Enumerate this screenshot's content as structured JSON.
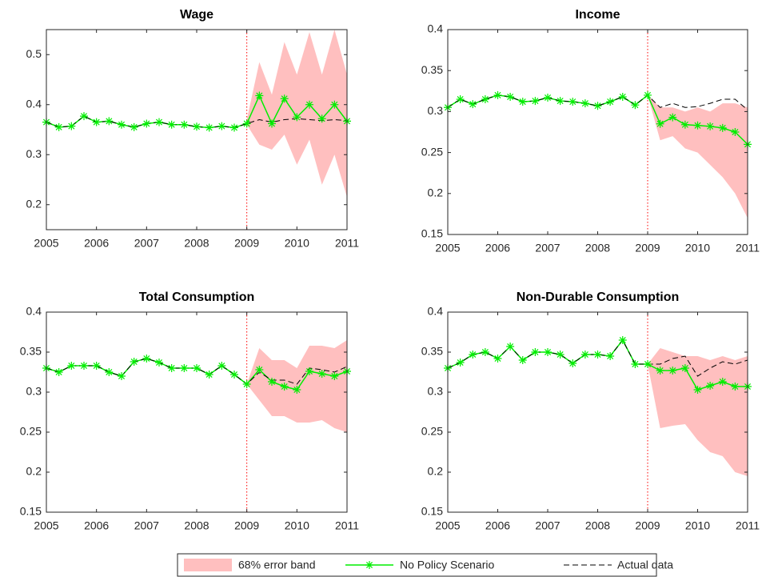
{
  "chart_data": [
    {
      "type": "line",
      "title": "Wage",
      "x": [
        2005,
        2005.25,
        2005.5,
        2005.75,
        2006,
        2006.25,
        2006.5,
        2006.75,
        2007,
        2007.25,
        2007.5,
        2007.75,
        2008,
        2008.25,
        2008.5,
        2008.75,
        2009,
        2009.25,
        2009.5,
        2009.75,
        2010,
        2010.25,
        2010.5,
        2010.75,
        2011
      ],
      "xlim": [
        2005,
        2011
      ],
      "xticks": [
        2005,
        2006,
        2007,
        2008,
        2009,
        2010,
        2011
      ],
      "ylim": [
        0.15,
        0.55
      ],
      "yticks": [
        0.2,
        0.3,
        0.4,
        0.5
      ],
      "vline": 2009,
      "vline_color": "#ff0000",
      "series": [
        {
          "name": "68% error band",
          "color": "#ffbfbf",
          "x": [
            2009,
            2009.25,
            2009.5,
            2009.75,
            2010,
            2010.25,
            2010.5,
            2010.75,
            2011
          ],
          "lower": [
            0.36,
            0.32,
            0.31,
            0.34,
            0.28,
            0.33,
            0.24,
            0.3,
            0.215
          ],
          "upper": [
            0.37,
            0.485,
            0.42,
            0.525,
            0.46,
            0.545,
            0.46,
            0.55,
            0.46
          ]
        },
        {
          "name": "No Policy Scenario",
          "color": "#00ee00",
          "values": [
            0.365,
            0.355,
            0.357,
            0.377,
            0.365,
            0.367,
            0.36,
            0.355,
            0.362,
            0.365,
            0.36,
            0.36,
            0.356,
            0.354,
            0.357,
            0.354,
            0.362,
            0.418,
            0.362,
            0.412,
            0.375,
            0.4,
            0.372,
            0.4,
            0.367
          ]
        },
        {
          "name": "Actual data",
          "color": "#000000",
          "values": [
            0.365,
            0.355,
            0.357,
            0.377,
            0.365,
            0.367,
            0.36,
            0.355,
            0.362,
            0.365,
            0.36,
            0.36,
            0.356,
            0.354,
            0.357,
            0.354,
            0.362,
            0.37,
            0.365,
            0.37,
            0.372,
            0.37,
            0.368,
            0.37,
            0.368
          ]
        }
      ]
    },
    {
      "type": "line",
      "title": "Income",
      "x": [
        2005,
        2005.25,
        2005.5,
        2005.75,
        2006,
        2006.25,
        2006.5,
        2006.75,
        2007,
        2007.25,
        2007.5,
        2007.75,
        2008,
        2008.25,
        2008.5,
        2008.75,
        2009,
        2009.25,
        2009.5,
        2009.75,
        2010,
        2010.25,
        2010.5,
        2010.75,
        2011
      ],
      "xlim": [
        2005,
        2011
      ],
      "xticks": [
        2005,
        2006,
        2007,
        2008,
        2009,
        2010,
        2011
      ],
      "ylim": [
        0.15,
        0.4
      ],
      "yticks": [
        0.15,
        0.2,
        0.25,
        0.3,
        0.35,
        0.4
      ],
      "vline": 2009,
      "vline_color": "#ff0000",
      "series": [
        {
          "color": "#ffbfbf",
          "x": [
            2009,
            2009.25,
            2009.5,
            2009.75,
            2010,
            2010.25,
            2010.5,
            2010.75,
            2011
          ],
          "lower": [
            0.32,
            0.265,
            0.27,
            0.255,
            0.25,
            0.235,
            0.22,
            0.2,
            0.17
          ],
          "upper": [
            0.32,
            0.305,
            0.305,
            0.3,
            0.305,
            0.3,
            0.31,
            0.31,
            0.305
          ]
        },
        {
          "color": "#00ee00",
          "values": [
            0.305,
            0.315,
            0.309,
            0.315,
            0.32,
            0.318,
            0.312,
            0.313,
            0.317,
            0.313,
            0.312,
            0.31,
            0.307,
            0.312,
            0.318,
            0.308,
            0.32,
            0.285,
            0.293,
            0.284,
            0.283,
            0.282,
            0.28,
            0.275,
            0.26
          ]
        },
        {
          "color": "#000000",
          "values": [
            0.305,
            0.315,
            0.309,
            0.315,
            0.32,
            0.318,
            0.312,
            0.313,
            0.317,
            0.313,
            0.312,
            0.31,
            0.307,
            0.312,
            0.318,
            0.308,
            0.32,
            0.305,
            0.31,
            0.305,
            0.306,
            0.31,
            0.315,
            0.315,
            0.302
          ]
        }
      ]
    },
    {
      "type": "line",
      "title": "Total Consumption",
      "x": [
        2005,
        2005.25,
        2005.5,
        2005.75,
        2006,
        2006.25,
        2006.5,
        2006.75,
        2007,
        2007.25,
        2007.5,
        2007.75,
        2008,
        2008.25,
        2008.5,
        2008.75,
        2009,
        2009.25,
        2009.5,
        2009.75,
        2010,
        2010.25,
        2010.5,
        2010.75,
        2011
      ],
      "xlim": [
        2005,
        2011
      ],
      "xticks": [
        2005,
        2006,
        2007,
        2008,
        2009,
        2010,
        2011
      ],
      "ylim": [
        0.15,
        0.4
      ],
      "yticks": [
        0.15,
        0.2,
        0.25,
        0.3,
        0.35,
        0.4
      ],
      "vline": 2009,
      "vline_color": "#ff0000",
      "series": [
        {
          "color": "#ffbfbf",
          "x": [
            2009,
            2009.25,
            2009.5,
            2009.75,
            2010,
            2010.25,
            2010.5,
            2010.75,
            2011
          ],
          "lower": [
            0.31,
            0.29,
            0.27,
            0.27,
            0.262,
            0.262,
            0.265,
            0.255,
            0.25
          ],
          "upper": [
            0.31,
            0.355,
            0.34,
            0.34,
            0.33,
            0.358,
            0.358,
            0.355,
            0.365
          ]
        },
        {
          "color": "#00ee00",
          "values": [
            0.33,
            0.325,
            0.333,
            0.333,
            0.333,
            0.325,
            0.32,
            0.338,
            0.342,
            0.337,
            0.33,
            0.33,
            0.33,
            0.322,
            0.333,
            0.322,
            0.31,
            0.328,
            0.313,
            0.307,
            0.303,
            0.326,
            0.323,
            0.32,
            0.326
          ]
        },
        {
          "color": "#000000",
          "values": [
            0.33,
            0.325,
            0.333,
            0.333,
            0.333,
            0.325,
            0.32,
            0.338,
            0.342,
            0.337,
            0.33,
            0.33,
            0.33,
            0.322,
            0.333,
            0.322,
            0.31,
            0.325,
            0.315,
            0.315,
            0.31,
            0.33,
            0.328,
            0.325,
            0.332
          ]
        }
      ]
    },
    {
      "type": "line",
      "title": "Non-Durable Consumption",
      "x": [
        2005,
        2005.25,
        2005.5,
        2005.75,
        2006,
        2006.25,
        2006.5,
        2006.75,
        2007,
        2007.25,
        2007.5,
        2007.75,
        2008,
        2008.25,
        2008.5,
        2008.75,
        2009,
        2009.25,
        2009.5,
        2009.75,
        2010,
        2010.25,
        2010.5,
        2010.75,
        2011
      ],
      "xlim": [
        2005,
        2011
      ],
      "xticks": [
        2005,
        2006,
        2007,
        2008,
        2009,
        2010,
        2011
      ],
      "ylim": [
        0.15,
        0.4
      ],
      "yticks": [
        0.15,
        0.2,
        0.25,
        0.3,
        0.35,
        0.4
      ],
      "vline": 2009,
      "vline_color": "#ff0000",
      "series": [
        {
          "color": "#ffbfbf",
          "x": [
            2009,
            2009.25,
            2009.5,
            2009.75,
            2010,
            2010.25,
            2010.5,
            2010.75,
            2011
          ],
          "lower": [
            0.335,
            0.255,
            0.258,
            0.26,
            0.24,
            0.225,
            0.22,
            0.2,
            0.195
          ],
          "upper": [
            0.335,
            0.355,
            0.35,
            0.345,
            0.345,
            0.34,
            0.345,
            0.34,
            0.345
          ]
        },
        {
          "color": "#00ee00",
          "values": [
            0.33,
            0.337,
            0.347,
            0.35,
            0.342,
            0.357,
            0.34,
            0.35,
            0.35,
            0.347,
            0.336,
            0.347,
            0.347,
            0.345,
            0.365,
            0.335,
            0.335,
            0.327,
            0.327,
            0.33,
            0.303,
            0.308,
            0.313,
            0.307,
            0.307
          ]
        },
        {
          "color": "#000000",
          "values": [
            0.33,
            0.337,
            0.347,
            0.35,
            0.342,
            0.357,
            0.34,
            0.35,
            0.35,
            0.347,
            0.336,
            0.347,
            0.347,
            0.345,
            0.365,
            0.335,
            0.335,
            0.335,
            0.342,
            0.345,
            0.32,
            0.33,
            0.338,
            0.335,
            0.34
          ]
        }
      ]
    }
  ]
}
